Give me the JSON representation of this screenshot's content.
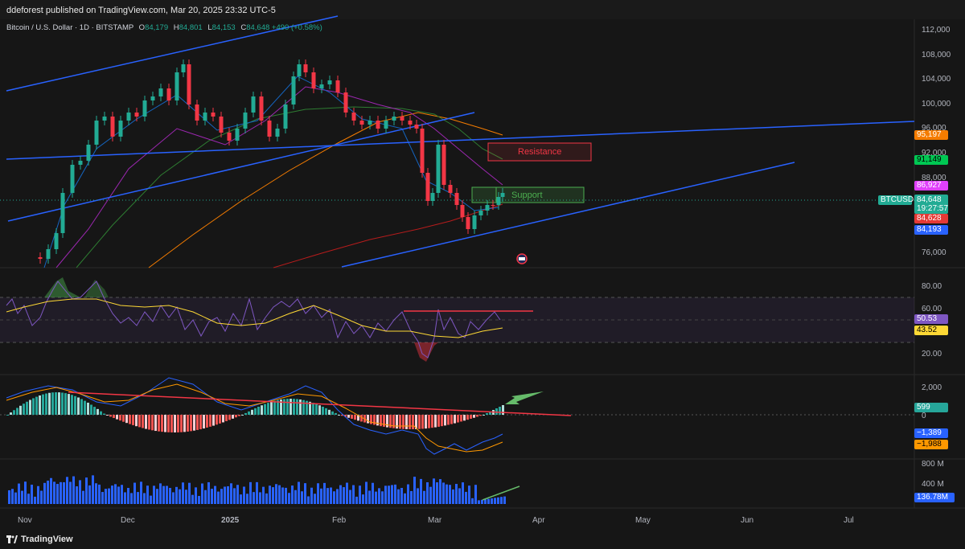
{
  "header": {
    "publisher_text": "ddeforest published on TradingView.com, Mar 20, 2025 23:32 UTC-5"
  },
  "legend": {
    "symbol": "Bitcoin / U.S. Dollar · 1D · BITSTAMP",
    "open_label": "O",
    "open": "84,179",
    "high_label": "H",
    "high": "84,801",
    "low_label": "L",
    "low": "84,153",
    "close_label": "C",
    "close": "84,648",
    "change": "+490 (+0.58%)"
  },
  "price_axis": {
    "ticks": [
      "112,000",
      "108,000",
      "104,000",
      "100,000",
      "96,000",
      "92,000",
      "88,000",
      "76,000"
    ]
  },
  "price_tags": {
    "t95197": {
      "text": "95,197",
      "color": "#f57c00"
    },
    "t91149": {
      "text": "91,149",
      "color": "#00c853"
    },
    "t86927": {
      "text": "86,927",
      "color": "#e040fb"
    },
    "symbol_tag": "BTCUSD",
    "current": "84,648",
    "countdown": "19:27:57",
    "t84628": {
      "text": "84,628",
      "color": "#e53935"
    },
    "t84193": {
      "text": "84,193",
      "color": "#2962ff"
    }
  },
  "annotations": {
    "resistance": "Resistance",
    "support": "Support"
  },
  "rsi_panel": {
    "ticks": [
      "80.00",
      "60.00",
      "20.00"
    ],
    "rsi_value": "50.53",
    "rsi_ma_value": "43.52"
  },
  "macd_panel": {
    "ticks": [
      "2,000",
      "0"
    ],
    "histogram_value": "599",
    "macd_value": "−1,389",
    "signal_value": "−1,988"
  },
  "volume_panel": {
    "ticks": [
      "800 M",
      "400 M"
    ],
    "volume_value": "136.78M"
  },
  "time_axis": {
    "labels": [
      "Nov",
      "Dec",
      "2025",
      "Feb",
      "Mar",
      "Apr",
      "May",
      "Jun",
      "Jul"
    ]
  },
  "footer": {
    "brand": "TradingView"
  },
  "colors": {
    "bull": "#22ab94",
    "bear": "#f23645",
    "trendline": "#2962ff",
    "rsi_line": "#7e57c2",
    "rsi_ma": "#fdd835"
  }
}
